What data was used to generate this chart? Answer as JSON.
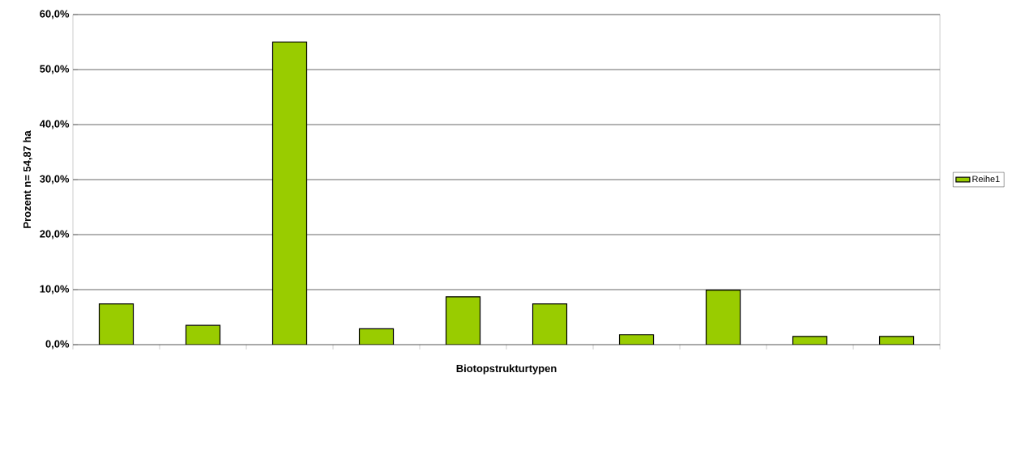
{
  "chart_data": {
    "type": "bar",
    "xlabel": "Biotopstrukturtypen",
    "ylabel": "Prozent n= 54,87 ha",
    "categories": [
      null,
      null,
      null,
      null,
      null,
      null,
      null,
      null,
      null,
      null
    ],
    "series": [
      {
        "name": "Reihe1",
        "color": "#99cc00",
        "values": [
          7.4,
          3.5,
          55.0,
          2.9,
          8.7,
          7.4,
          1.8,
          9.9,
          1.5,
          1.5
        ]
      }
    ],
    "ylim": [
      0,
      60
    ],
    "yticks": [
      {
        "value": 0,
        "label": "0,0%"
      },
      {
        "value": 10,
        "label": "10,0%"
      },
      {
        "value": 20,
        "label": "20,0%"
      },
      {
        "value": 30,
        "label": "30,0%"
      },
      {
        "value": 40,
        "label": "40,0%"
      },
      {
        "value": 50,
        "label": "50,0%"
      },
      {
        "value": 60,
        "label": "60,0%"
      }
    ],
    "grid": "y",
    "legend": "right"
  }
}
